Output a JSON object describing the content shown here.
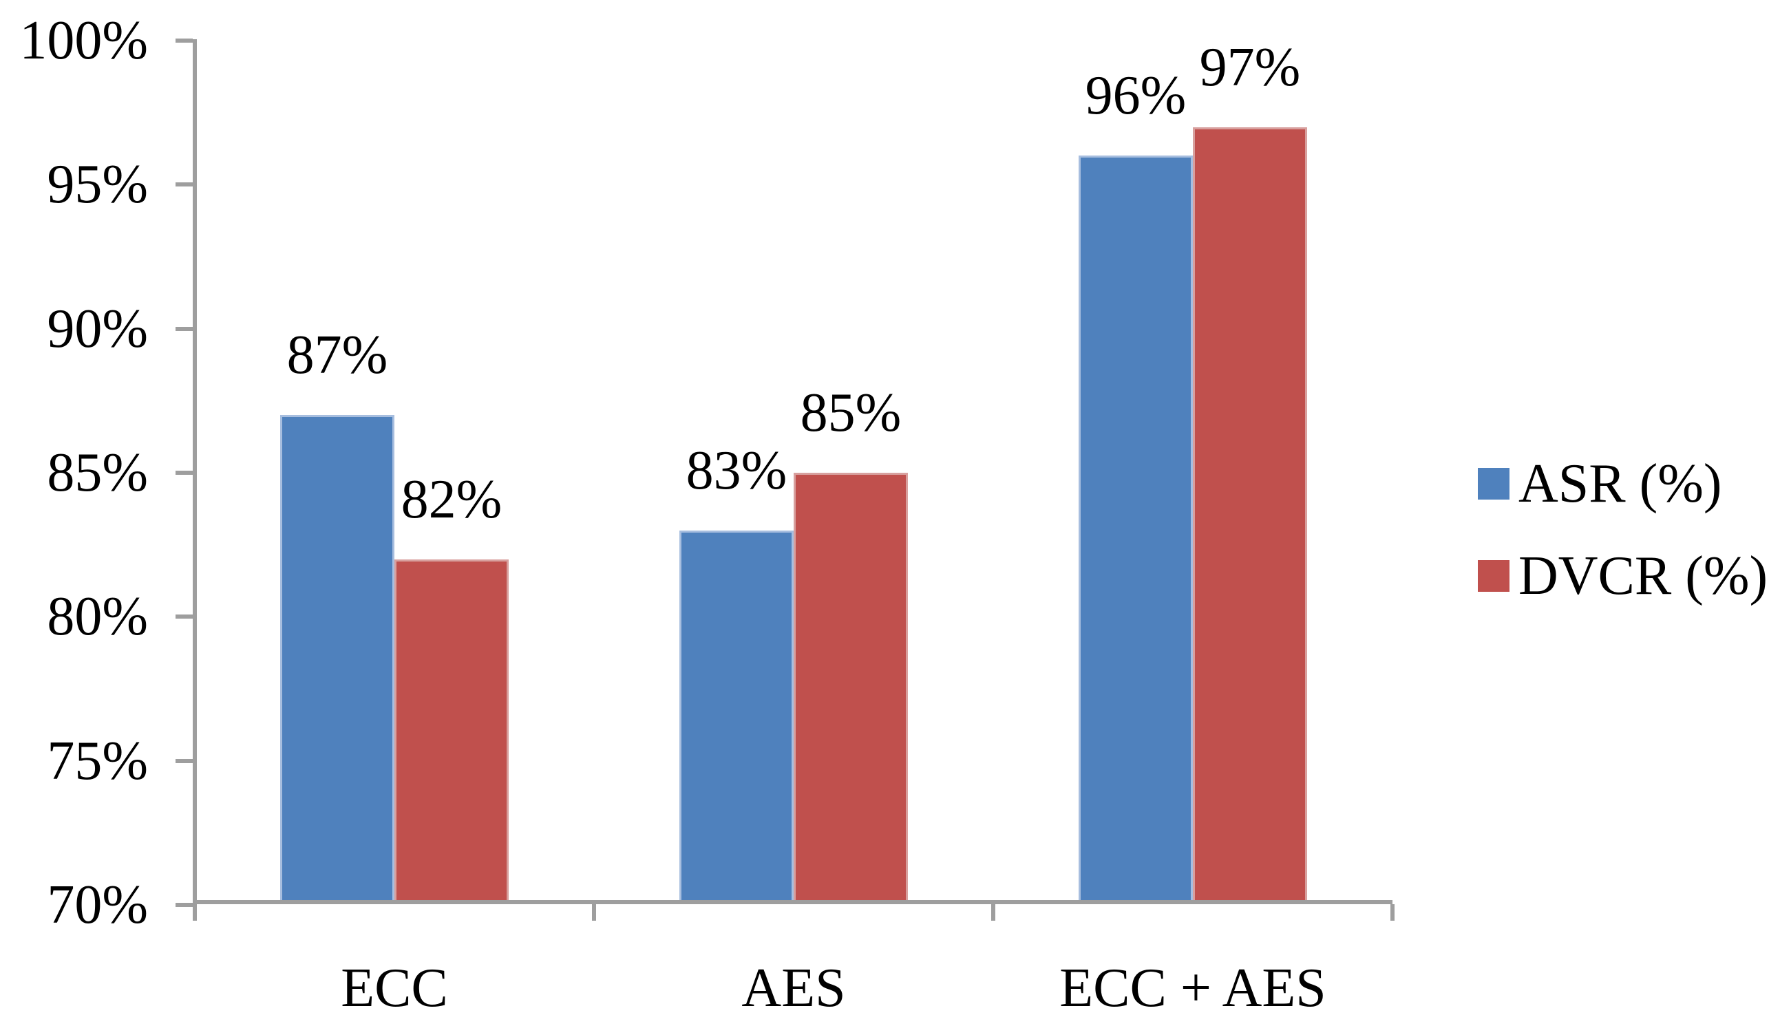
{
  "chart_data": {
    "type": "bar",
    "title": "",
    "categories": [
      "ECC",
      "AES",
      "ECC + AES"
    ],
    "series": [
      {
        "name": "ASR (%)",
        "color": "#4F81BD",
        "border_color": "#A7BEDF",
        "values": [
          87,
          83,
          96
        ],
        "data_labels": [
          "87%",
          "83%",
          "96%"
        ]
      },
      {
        "name": "DVCR (%)",
        "color": "#C0504D",
        "border_color": "#D8A09E",
        "values": [
          82,
          85,
          97
        ],
        "data_labels": [
          "82%",
          "85%",
          "97%"
        ]
      }
    ],
    "xlabel": "",
    "ylabel": "",
    "ylim": [
      70,
      100
    ],
    "y_tick_step": 5,
    "y_tick_labels": [
      "100%",
      "95%",
      "90%",
      "85%",
      "80%",
      "75%",
      "70%"
    ],
    "grid": false,
    "legend_position": "right",
    "axis_color": "#9E9E9E",
    "text_color": "#000000",
    "background_color": "#FFFFFF"
  }
}
